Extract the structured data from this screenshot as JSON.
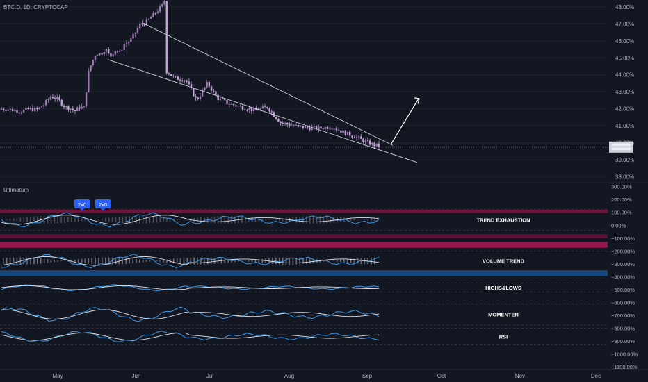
{
  "chart_data": [
    {
      "type": "candlestick",
      "symbol_label": "BTC.D, 1D, CRYPTOCAP",
      "y_ticks": [
        {
          "label": "48.00%",
          "value": 48
        },
        {
          "label": "47.00%",
          "value": 47
        },
        {
          "label": "46.00%",
          "value": 46
        },
        {
          "label": "45.00%",
          "value": 45
        },
        {
          "label": "44.00%",
          "value": 44
        },
        {
          "label": "43.00%",
          "value": 43
        },
        {
          "label": "42.00%",
          "value": 42
        },
        {
          "label": "41.00%",
          "value": 41
        },
        {
          "label": "40.00%",
          "value": 40
        },
        {
          "label": "39.00%",
          "value": 39
        },
        {
          "label": "38.00%",
          "value": 38
        }
      ],
      "ylim": [
        37.7,
        48.4
      ],
      "last_value": 39.75,
      "trend_path": [
        [
          0,
          42.0
        ],
        [
          0.04,
          41.95
        ],
        [
          0.08,
          41.85
        ],
        [
          0.12,
          42.0
        ],
        [
          0.15,
          41.95
        ],
        [
          0.18,
          42.25
        ],
        [
          0.21,
          42.75
        ],
        [
          0.24,
          42.55
        ],
        [
          0.27,
          42.1
        ],
        [
          0.29,
          42.05
        ],
        [
          0.31,
          41.85
        ],
        [
          0.33,
          42.1
        ],
        [
          0.35,
          42.05
        ],
        [
          0.37,
          44.3
        ],
        [
          0.4,
          45.3
        ],
        [
          0.42,
          45.2
        ],
        [
          0.44,
          45.55
        ],
        [
          0.46,
          45.05
        ],
        [
          0.48,
          45.45
        ],
        [
          0.5,
          45.3
        ],
        [
          0.52,
          45.8
        ],
        [
          0.545,
          46.0
        ],
        [
          0.565,
          46.45
        ],
        [
          0.585,
          46.95
        ],
        [
          0.61,
          47.05
        ],
        [
          0.63,
          47.35
        ],
        [
          0.655,
          47.7
        ],
        [
          0.68,
          48.05
        ],
        [
          0.69,
          48.35
        ],
        [
          0.705,
          47.55
        ],
        [
          0.72,
          46.2
        ],
        [
          0.74,
          45.6
        ],
        [
          0.76,
          44.5
        ],
        [
          0.78,
          44.25
        ],
        [
          0.8,
          44.3
        ],
        [
          0.82,
          43.6
        ],
        [
          0.84,
          43.2
        ],
        [
          0.87,
          43.4
        ],
        [
          0.89,
          43.3
        ],
        [
          0.91,
          43.55
        ],
        [
          0.94,
          43.6
        ],
        [
          0.965,
          44.0
        ],
        [
          1.0,
          44.3
        ]
      ],
      "trend_path_2": [
        [
          0,
          44.3
        ],
        [
          0.05,
          43.8
        ],
        [
          0.1,
          43.7
        ],
        [
          0.15,
          42.5
        ],
        [
          0.2,
          43.5
        ],
        [
          0.25,
          42.6
        ],
        [
          0.3,
          42.3
        ],
        [
          0.36,
          42.1
        ],
        [
          0.42,
          41.9
        ],
        [
          0.48,
          42.1
        ],
        [
          0.54,
          41.2
        ],
        [
          0.6,
          41.0
        ],
        [
          0.66,
          40.9
        ],
        [
          0.72,
          40.85
        ],
        [
          0.78,
          40.95
        ],
        [
          0.84,
          40.6
        ],
        [
          0.9,
          40.3
        ],
        [
          0.95,
          40.0
        ],
        [
          1.0,
          39.8
        ]
      ],
      "annotations": [
        {
          "kind": "trendline",
          "from": [
            "Jun",
            47.1
          ],
          "to": [
            "Sep",
            39.8
          ],
          "meaning": "upper wedge line"
        },
        {
          "kind": "trendline",
          "from": [
            "May",
            44.9
          ],
          "to": [
            "Sep",
            39.1
          ],
          "meaning": "lower wedge line"
        },
        {
          "kind": "arrow",
          "from": [
            "Sep",
            39.8
          ],
          "to": [
            "Sep",
            42.55
          ],
          "meaning": "projected breakout"
        }
      ]
    },
    {
      "type": "indicator_panel",
      "name": "Ultimatum",
      "y_ticks": [
        {
          "label": "300.00%",
          "value": 300
        },
        {
          "label": "200.00%",
          "value": 200
        },
        {
          "label": "100.00%",
          "value": 100
        },
        {
          "label": "0.00%",
          "value": 0
        },
        {
          "label": "−100.00%",
          "value": -100
        },
        {
          "label": "−200.00%",
          "value": -200
        },
        {
          "label": "−300.00%",
          "value": -300
        },
        {
          "label": "−400.00%",
          "value": -400
        },
        {
          "label": "−500.00%",
          "value": -500
        },
        {
          "label": "−600.00%",
          "value": -600
        },
        {
          "label": "−700.00%",
          "value": -700
        },
        {
          "label": "−800.00%",
          "value": -800
        },
        {
          "label": "−900.00%",
          "value": -900
        },
        {
          "label": "−1000.00%",
          "value": -1000
        },
        {
          "label": "−1100.00%",
          "value": -1100
        }
      ],
      "ylim": [
        -1115,
        325
      ],
      "sub_indicators": [
        {
          "label": "TREND EXHAUSTION",
          "value": 25,
          "band": [
            -40,
            125
          ]
        },
        {
          "label": "VOLUME TREND",
          "value": -275,
          "band": [
            -355,
            -200
          ]
        },
        {
          "label": "HIGHS&LOWS",
          "value": -490,
          "band": [
            -520,
            -450
          ]
        },
        {
          "label": "MOMENTER",
          "value": -695,
          "band": [
            -775,
            -610
          ]
        },
        {
          "label": "RSI",
          "value": -885,
          "band": [
            -930,
            -800
          ]
        }
      ],
      "signals": [
        {
          "label": "2x0",
          "at": "May"
        },
        {
          "label": "2x0",
          "at": "May"
        }
      ]
    }
  ],
  "x_axis": {
    "months": [
      "May",
      "Jun",
      "Jul",
      "Aug",
      "Sep",
      "Oct",
      "Nov",
      "Dec"
    ]
  },
  "colors": {
    "background": "#131722",
    "candle_down": "#c4a3d7",
    "candle_up": "#9c7bb3",
    "line": "#b2b5be",
    "teal": "#2962ff",
    "blue": "#3d9be9",
    "pink": "#e0226e",
    "magenta": "#b0154f",
    "dim_text": "#b2b5be"
  }
}
